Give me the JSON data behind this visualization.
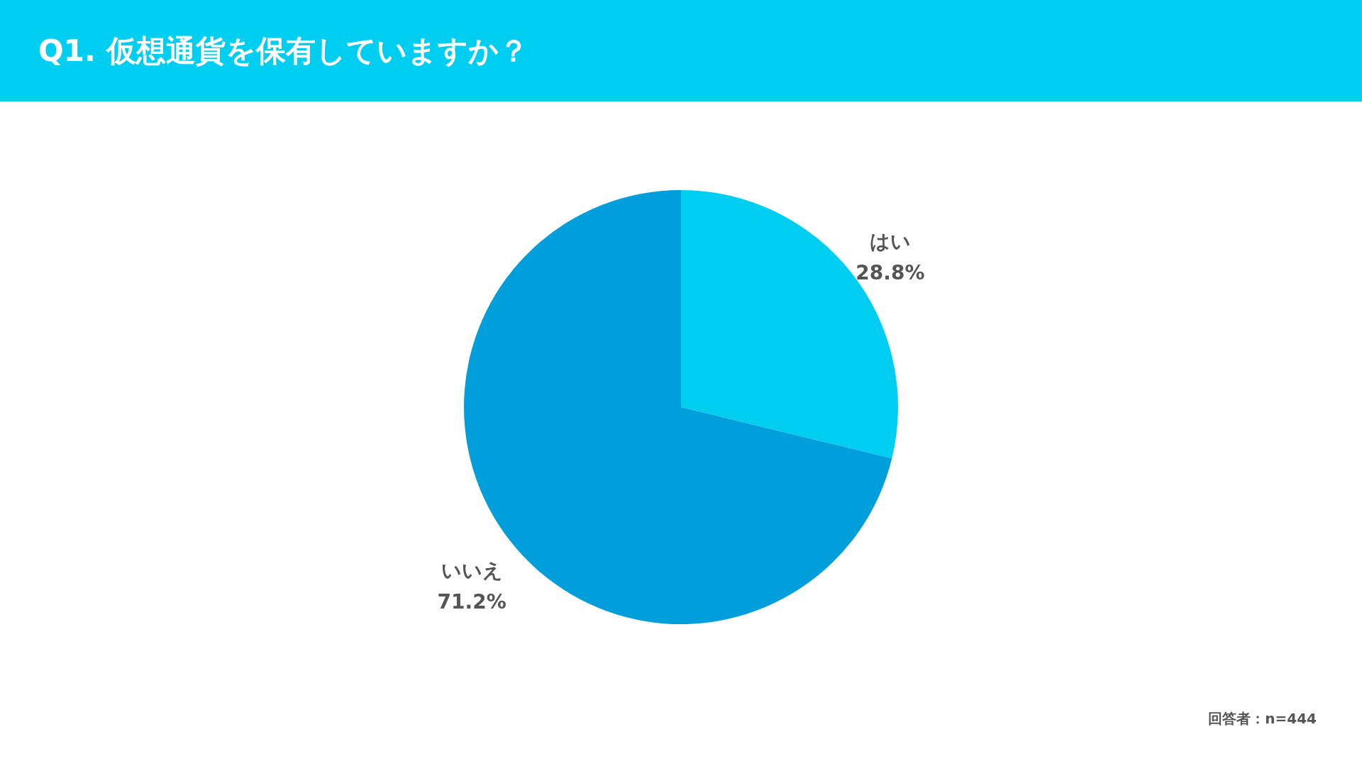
{
  "chart_data": {
    "type": "pie",
    "title": "Q1. 仮想通貨を保有していますか？",
    "categories": [
      "はい",
      "いいえ"
    ],
    "values": [
      28.8,
      71.2
    ],
    "colors": [
      "#00cef1",
      "#009fdb"
    ],
    "value_labels": [
      "28.8%",
      "71.2%"
    ],
    "annotations": [
      "回答者：n=444"
    ]
  }
}
